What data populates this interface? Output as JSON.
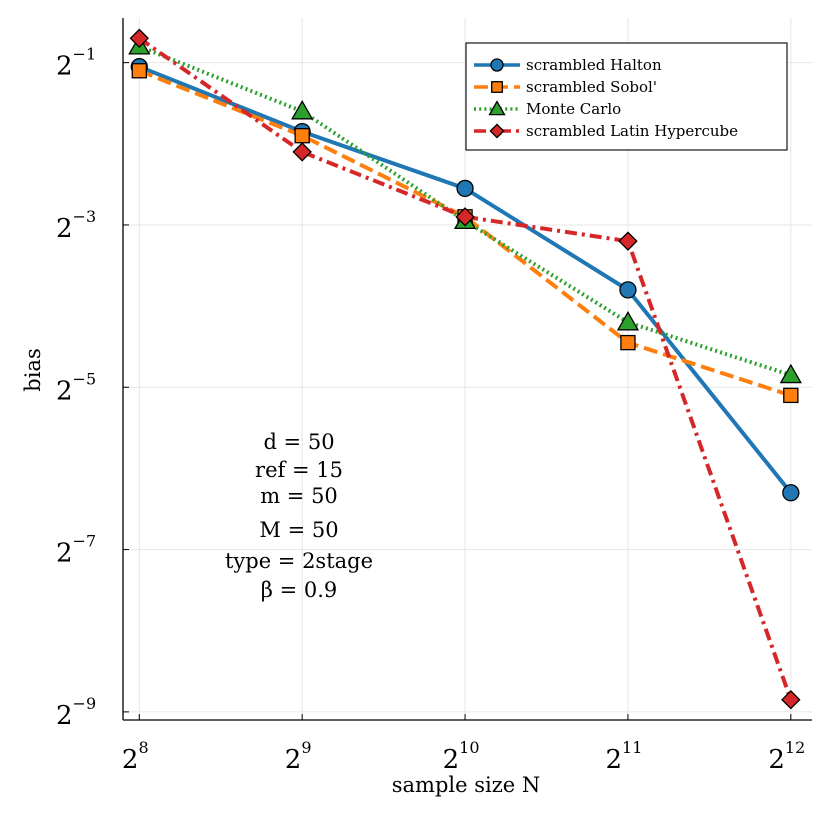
{
  "chart_data": {
    "type": "line",
    "title": "",
    "xlabel": "sample size N",
    "ylabel": "bias",
    "x_scale": "log2",
    "y_scale": "log2",
    "x_log2": [
      8,
      9,
      10,
      11,
      12
    ],
    "xlim_log2": [
      7.9,
      12.13
    ],
    "ylim_log2": [
      -9.1,
      -0.45
    ],
    "x_ticks": [
      {
        "base": "2",
        "exp": "8",
        "log2": 8
      },
      {
        "base": "2",
        "exp": "9",
        "log2": 9
      },
      {
        "base": "2",
        "exp": "10",
        "log2": 10
      },
      {
        "base": "2",
        "exp": "11",
        "log2": 11
      },
      {
        "base": "2",
        "exp": "12",
        "log2": 12
      }
    ],
    "y_ticks": [
      {
        "base": "2",
        "exp": "−1",
        "log2": -1
      },
      {
        "base": "2",
        "exp": "−3",
        "log2": -3
      },
      {
        "base": "2",
        "exp": "−5",
        "log2": -5
      },
      {
        "base": "2",
        "exp": "−7",
        "log2": -7
      },
      {
        "base": "2",
        "exp": "−9",
        "log2": -9
      }
    ],
    "grid": true,
    "legend_position": "top-right",
    "series": [
      {
        "name": "scrambled Halton",
        "color": "#1f77b4",
        "dash": "solid",
        "marker": "circle",
        "y_log2": [
          -1.05,
          -1.85,
          -2.55,
          -3.8,
          -6.3
        ]
      },
      {
        "name": "scrambled Sobol'",
        "color": "#ff7f0e",
        "dash": "dashed",
        "marker": "square",
        "y_log2": [
          -1.1,
          -1.9,
          -2.9,
          -4.45,
          -5.1
        ]
      },
      {
        "name": "Monte Carlo",
        "color": "#2ca02c",
        "dash": "dotted",
        "marker": "triangle",
        "y_log2": [
          -0.8,
          -1.6,
          -2.95,
          -4.2,
          -4.85
        ]
      },
      {
        "name": "scrambled Latin Hypercube",
        "color": "#d62728",
        "dash": "dashdot",
        "marker": "diamond",
        "y_log2": [
          -0.7,
          -2.1,
          -2.9,
          -3.2,
          -8.85
        ]
      }
    ],
    "annotations": [
      "d = 50",
      "ref = 15",
      "m = 50",
      "M = 50",
      "type = 2stage",
      "β = 0.9"
    ]
  }
}
